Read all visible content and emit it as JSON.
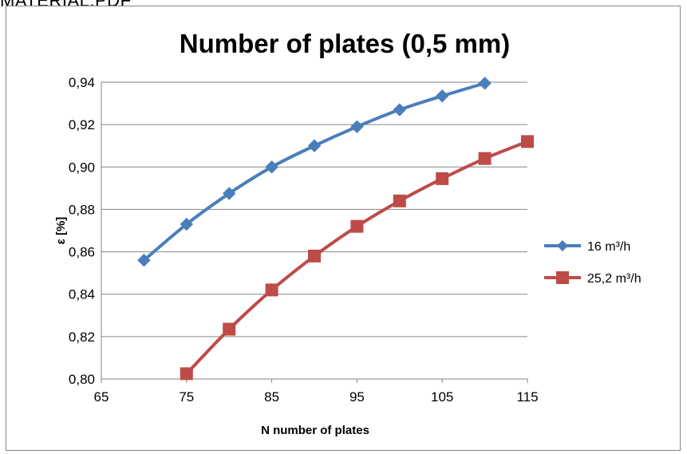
{
  "page": {
    "top_label": "MATERIAL.PDF"
  },
  "chart_data": {
    "type": "line",
    "title": "Number of plates (0,5 mm)",
    "xlabel": "N number of plates",
    "ylabel": "ε [%]",
    "xlim": [
      65,
      115
    ],
    "ylim": [
      0.8,
      0.94
    ],
    "x_ticks": [
      65,
      75,
      85,
      95,
      105,
      115
    ],
    "y_ticks": [
      0.8,
      0.82,
      0.84,
      0.86,
      0.88,
      0.9,
      0.92,
      0.94
    ],
    "x_tick_labels": [
      "65",
      "75",
      "85",
      "95",
      "105",
      "115"
    ],
    "y_tick_labels": [
      "0,80",
      "0,82",
      "0,84",
      "0,86",
      "0,88",
      "0,90",
      "0,92",
      "0,94"
    ],
    "grid": "horizontal",
    "legend_position": "right",
    "series": [
      {
        "name": "16 m³/h",
        "color": "#4A7EBB",
        "marker": "diamond",
        "x": [
          70,
          75,
          80,
          85,
          90,
          95,
          100,
          105,
          110
        ],
        "y": [
          0.856,
          0.873,
          0.8875,
          0.9,
          0.91,
          0.919,
          0.927,
          0.9335,
          0.9395
        ]
      },
      {
        "name": "25,2 m³/h",
        "color": "#BE4B48",
        "marker": "square",
        "x": [
          75,
          80,
          85,
          90,
          95,
          100,
          105,
          110,
          115
        ],
        "y": [
          0.8025,
          0.8235,
          0.842,
          0.858,
          0.872,
          0.884,
          0.8945,
          0.904,
          0.912
        ]
      }
    ]
  }
}
